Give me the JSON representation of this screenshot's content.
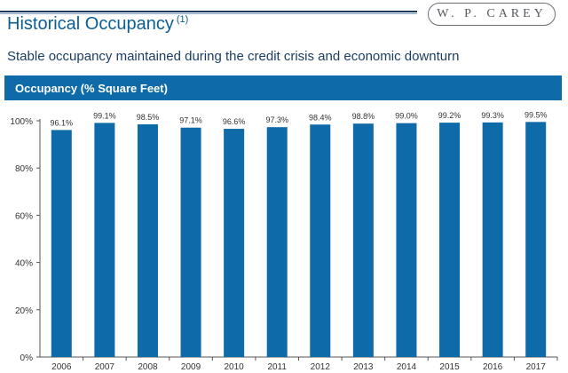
{
  "header": {
    "title": "Historical Occupancy",
    "title_footnote": "(1)",
    "subtitle": "Stable occupancy maintained during the credit crisis and economic downturn",
    "logo_text": "W. P. CAREY"
  },
  "band": {
    "label": "Occupancy (% Square Feet)"
  },
  "colors": {
    "bar": "#0e6aa8",
    "accent": "#0b5f94"
  },
  "chart_data": {
    "type": "bar",
    "title": "Occupancy (% Square Feet)",
    "categories": [
      "2006",
      "2007",
      "2008",
      "2009",
      "2010",
      "2011",
      "2012",
      "2013",
      "2014",
      "2015",
      "2016",
      "2017"
    ],
    "values": [
      96.1,
      99.1,
      98.5,
      97.1,
      96.6,
      97.3,
      98.4,
      98.8,
      99.0,
      99.2,
      99.3,
      99.5
    ],
    "data_labels": [
      "96.1%",
      "99.1%",
      "98.5%",
      "97.1%",
      "96.6%",
      "97.3%",
      "98.4%",
      "98.8%",
      "99.0%",
      "99.2%",
      "99.3%",
      "99.5%"
    ],
    "yticks": [
      0,
      20,
      40,
      60,
      80,
      100
    ],
    "ytick_labels": [
      "0%",
      "20%",
      "40%",
      "60%",
      "80%",
      "100%"
    ],
    "ylim": [
      0,
      100
    ],
    "xlabel": "",
    "ylabel": "",
    "grid": false
  }
}
